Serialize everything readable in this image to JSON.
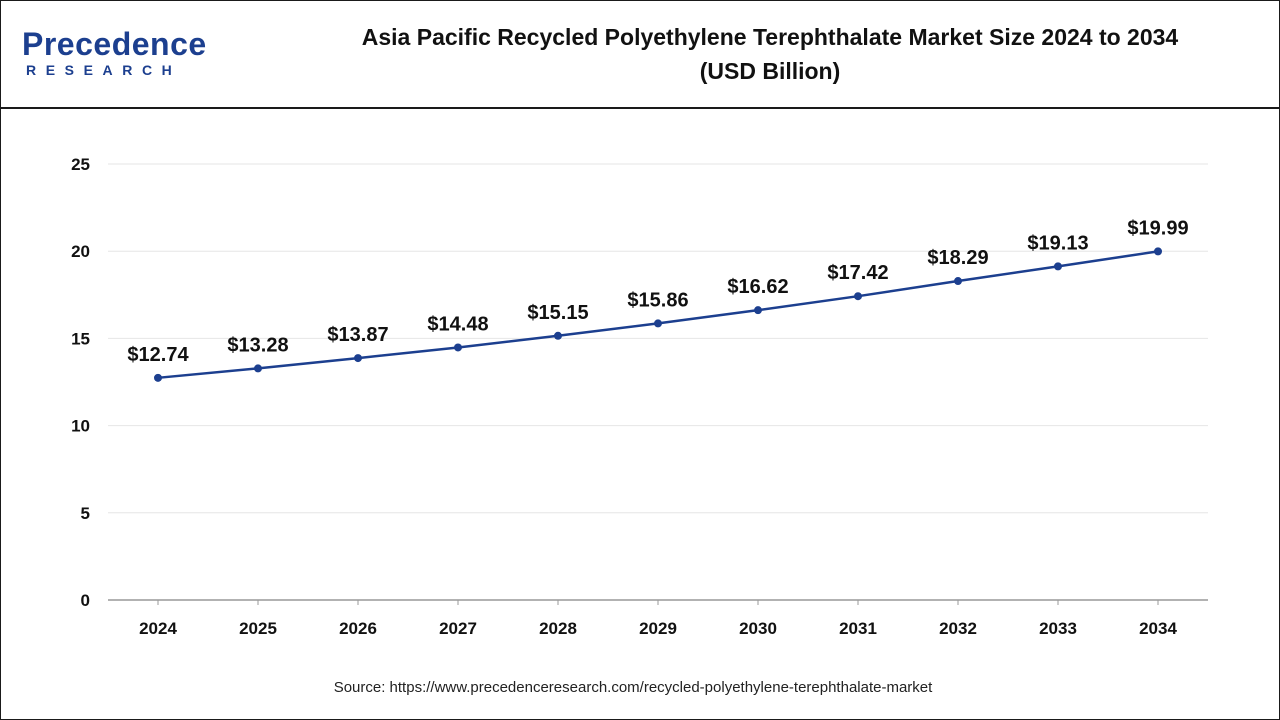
{
  "header": {
    "logo_text": "Precedence",
    "logo_subtext": "RESEARCH",
    "title_line1": "Asia Pacific Recycled Polyethylene Terephthalate Market Size 2024 to 2034",
    "title_line2": "(USD Billion)"
  },
  "colors": {
    "line": "#1c3f8f",
    "brand": "#1c3f8f",
    "grid": "#e6e6e6",
    "axis": "#999999"
  },
  "chart_data": {
    "type": "line",
    "title": "Asia Pacific Recycled Polyethylene Terephthalate Market Size 2024 to 2034 (USD Billion)",
    "xlabel": "",
    "ylabel": "",
    "categories": [
      "2024",
      "2025",
      "2026",
      "2027",
      "2028",
      "2029",
      "2030",
      "2031",
      "2032",
      "2033",
      "2034"
    ],
    "series": [
      {
        "values": [
          12.74,
          13.28,
          13.87,
          14.48,
          15.15,
          15.86,
          16.62,
          17.42,
          18.29,
          19.13,
          19.99
        ],
        "data_labels": [
          "$12.74",
          "$13.28",
          "$13.87",
          "$14.48",
          "$15.15",
          "$15.86",
          "$16.62",
          "$17.42",
          "$18.29",
          "$19.13",
          "$19.99"
        ]
      }
    ],
    "ylim": [
      0,
      25
    ],
    "yticks": [
      "0",
      "5",
      "10",
      "15",
      "20",
      "25"
    ],
    "grid": true,
    "legend": "none"
  },
  "footer": {
    "source": "Source: https://www.precedenceresearch.com/recycled-polyethylene-terephthalate-market"
  }
}
